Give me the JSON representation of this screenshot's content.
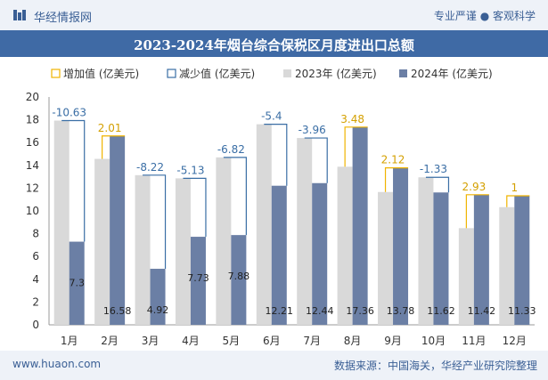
{
  "header": {
    "brand": "华经情报网",
    "tagline": "专业严谨 ● 客观科学"
  },
  "title": "2023-2024年烟台综合保税区月度进出口总额",
  "footer": {
    "website": "www.huaon.com",
    "source": "数据来源：中国海关，华经产业研究院整理"
  },
  "colors": {
    "increase": "#f0b400",
    "decrease": "#3a6ea5",
    "y2023": "#d9d9d9",
    "y2024": "#6b7fa5",
    "increase_text": "#d4a000",
    "decrease_text": "#3a6ea5"
  },
  "chart_data": {
    "type": "bar",
    "categories": [
      "1月",
      "2月",
      "3月",
      "4月",
      "5月",
      "6月",
      "7月",
      "8月",
      "9月",
      "10月",
      "11月",
      "12月"
    ],
    "series": [
      {
        "name": "2023年 (亿美元)",
        "values": [
          17.93,
          14.57,
          13.14,
          12.86,
          14.7,
          17.61,
          16.4,
          13.88,
          11.66,
          12.95,
          8.49,
          10.33
        ]
      },
      {
        "name": "2024年 (亿美元)",
        "values": [
          7.3,
          16.58,
          4.92,
          7.73,
          7.88,
          12.21,
          12.44,
          17.36,
          13.78,
          11.62,
          11.42,
          11.33
        ]
      }
    ],
    "changes": [
      -10.63,
      2.01,
      -8.22,
      -5.13,
      -6.82,
      -5.4,
      -3.96,
      3.48,
      2.12,
      -1.33,
      2.93,
      1
    ],
    "change_labels": [
      "-10.63",
      "2.01",
      "-8.22",
      "-5.13",
      "-6.82",
      "-5.4",
      "-3.96",
      "3.48",
      "2.12",
      "-1.33",
      "2.93",
      "1"
    ],
    "value_labels_2024": [
      "7.3",
      "16.58",
      "4.92",
      "7.73",
      "7.88",
      "12.21",
      "12.44",
      "17.36",
      "13.78",
      "11.62",
      "11.42",
      "11.33"
    ],
    "legend": [
      "增加值 (亿美元)",
      "减少值 (亿美元)",
      "2023年 (亿美元)",
      "2024年 (亿美元)"
    ],
    "y_ticks": [
      "0",
      "2",
      "4",
      "6",
      "8",
      "10",
      "12",
      "14",
      "16",
      "18",
      "20"
    ],
    "ylim": [
      0,
      20
    ],
    "grid": false,
    "legend_position": "top"
  }
}
